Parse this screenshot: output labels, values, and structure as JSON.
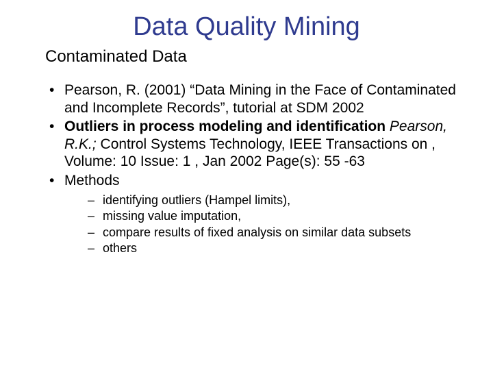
{
  "title": {
    "text": "Data Quality Mining",
    "color": "#2f3b8f",
    "fontsize": 38
  },
  "subtitle": {
    "text": "Contaminated Data",
    "fontsize": 24
  },
  "body_fontsize": 21,
  "sub_fontsize": 18,
  "text_color": "#000000",
  "background_color": "#ffffff",
  "bullets": [
    {
      "runs": [
        {
          "t": "Pearson, R. (2001) “Data Mining in the Face of Contaminated and Incomplete Records”, tutorial at SDM 2002"
        }
      ]
    },
    {
      "runs": [
        {
          "t": "Outliers in process modeling and identification",
          "bold": true
        },
        {
          "t": " "
        },
        {
          "t": "Pearson, R.K.;",
          "italic": true
        },
        {
          "t": " Control Systems Technology, IEEE Transactions on , Volume: 10 Issue: 1 , Jan 2002 Page(s): 55 -63"
        }
      ]
    },
    {
      "runs": [
        {
          "t": "Methods"
        }
      ],
      "children": [
        {
          "t": "identifying outliers (Hampel limits),"
        },
        {
          "t": "missing value imputation,"
        },
        {
          "t": "compare results of fixed analysis on similar data subsets"
        },
        {
          "t": "others"
        }
      ]
    }
  ]
}
